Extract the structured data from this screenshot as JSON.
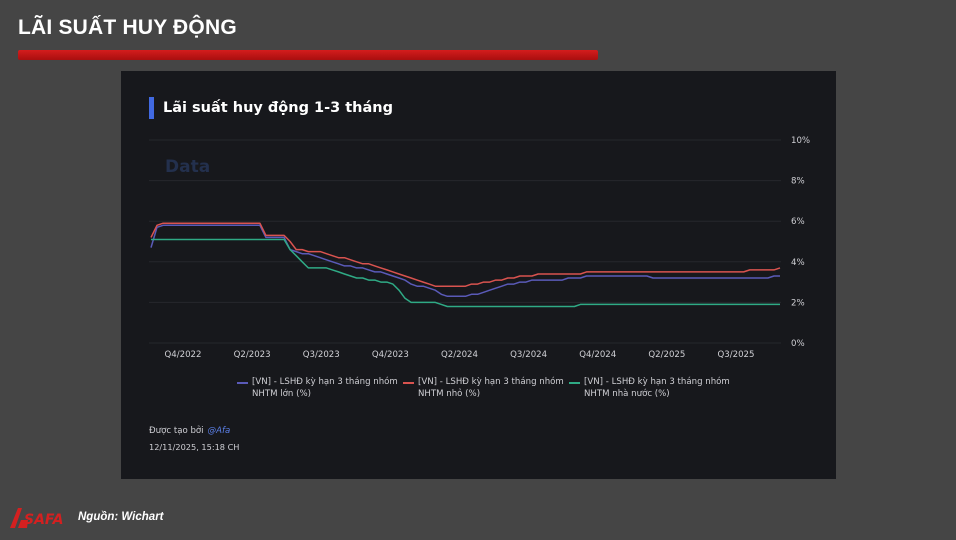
{
  "slide": {
    "title": "LÃI SUẤT HUY ĐỘNG",
    "source": "Nguồn: Wichart",
    "logo_text": "SAFA",
    "accent_color": "#c41212"
  },
  "card": {
    "heading": "Lãi suất huy động 1-3 tháng",
    "watermark": "Data",
    "credit_prefix": "Được tạo bởi",
    "credit_handle": "@Afa",
    "timestamp": "12/11/2025, 15:18 CH"
  },
  "chart_data": {
    "type": "line",
    "title": "Lãi suất huy động 1-3 tháng",
    "x_tick_labels": [
      "Q4/2022",
      "Q2/2023",
      "Q3/2023",
      "Q4/2023",
      "Q2/2024",
      "Q3/2024",
      "Q4/2024",
      "Q2/2025",
      "Q3/2025"
    ],
    "y_tick_labels": [
      "0%",
      "2%",
      "4%",
      "6%",
      "8%",
      "10%"
    ],
    "ylim": [
      0,
      10
    ],
    "y_axis_side": "right",
    "grid": true,
    "legend_position": "bottom",
    "series": [
      {
        "name": "[VN] - LSHĐ kỳ hạn 3 tháng nhóm NHTM lớn (%)",
        "color": "#5a5ab8",
        "values": [
          4.7,
          5.7,
          5.8,
          5.8,
          5.8,
          5.8,
          5.8,
          5.8,
          5.8,
          5.8,
          5.8,
          5.8,
          5.8,
          5.8,
          5.8,
          5.8,
          5.8,
          5.8,
          5.8,
          5.2,
          5.2,
          5.2,
          5.2,
          4.6,
          4.5,
          4.4,
          4.4,
          4.3,
          4.2,
          4.1,
          4.0,
          3.9,
          3.8,
          3.8,
          3.7,
          3.7,
          3.6,
          3.5,
          3.5,
          3.4,
          3.3,
          3.2,
          3.1,
          2.9,
          2.8,
          2.8,
          2.7,
          2.6,
          2.4,
          2.3,
          2.3,
          2.3,
          2.3,
          2.4,
          2.4,
          2.5,
          2.6,
          2.7,
          2.8,
          2.9,
          2.9,
          3.0,
          3.0,
          3.1,
          3.1,
          3.1,
          3.1,
          3.1,
          3.1,
          3.2,
          3.2,
          3.2,
          3.3,
          3.3,
          3.3,
          3.3,
          3.3,
          3.3,
          3.3,
          3.3,
          3.3,
          3.3,
          3.3,
          3.2,
          3.2,
          3.2,
          3.2,
          3.2,
          3.2,
          3.2,
          3.2,
          3.2,
          3.2,
          3.2,
          3.2,
          3.2,
          3.2,
          3.2,
          3.2,
          3.2,
          3.2,
          3.2,
          3.2,
          3.3,
          3.3
        ]
      },
      {
        "name": "[VN] - LSHĐ kỳ hạn 3 tháng nhóm NHTM nhỏ (%)",
        "color": "#d9534f",
        "values": [
          5.2,
          5.8,
          5.9,
          5.9,
          5.9,
          5.9,
          5.9,
          5.9,
          5.9,
          5.9,
          5.9,
          5.9,
          5.9,
          5.9,
          5.9,
          5.9,
          5.9,
          5.9,
          5.9,
          5.3,
          5.3,
          5.3,
          5.3,
          5.0,
          4.6,
          4.6,
          4.5,
          4.5,
          4.5,
          4.4,
          4.3,
          4.2,
          4.2,
          4.1,
          4.0,
          3.9,
          3.9,
          3.8,
          3.7,
          3.6,
          3.5,
          3.4,
          3.3,
          3.2,
          3.1,
          3.0,
          2.9,
          2.8,
          2.8,
          2.8,
          2.8,
          2.8,
          2.8,
          2.9,
          2.9,
          3.0,
          3.0,
          3.1,
          3.1,
          3.2,
          3.2,
          3.3,
          3.3,
          3.3,
          3.4,
          3.4,
          3.4,
          3.4,
          3.4,
          3.4,
          3.4,
          3.4,
          3.5,
          3.5,
          3.5,
          3.5,
          3.5,
          3.5,
          3.5,
          3.5,
          3.5,
          3.5,
          3.5,
          3.5,
          3.5,
          3.5,
          3.5,
          3.5,
          3.5,
          3.5,
          3.5,
          3.5,
          3.5,
          3.5,
          3.5,
          3.5,
          3.5,
          3.5,
          3.5,
          3.6,
          3.6,
          3.6,
          3.6,
          3.6,
          3.7
        ]
      },
      {
        "name": "[VN] - LSHĐ kỳ hạn 3 tháng nhóm NHTM nhà nước (%)",
        "color": "#2faa85",
        "values": [
          5.1,
          5.1,
          5.1,
          5.1,
          5.1,
          5.1,
          5.1,
          5.1,
          5.1,
          5.1,
          5.1,
          5.1,
          5.1,
          5.1,
          5.1,
          5.1,
          5.1,
          5.1,
          5.1,
          5.1,
          5.1,
          5.1,
          5.1,
          4.6,
          4.3,
          4.0,
          3.7,
          3.7,
          3.7,
          3.7,
          3.6,
          3.5,
          3.4,
          3.3,
          3.2,
          3.2,
          3.1,
          3.1,
          3.0,
          3.0,
          2.9,
          2.6,
          2.2,
          2.0,
          2.0,
          2.0,
          2.0,
          2.0,
          1.9,
          1.8,
          1.8,
          1.8,
          1.8,
          1.8,
          1.8,
          1.8,
          1.8,
          1.8,
          1.8,
          1.8,
          1.8,
          1.8,
          1.8,
          1.8,
          1.8,
          1.8,
          1.8,
          1.8,
          1.8,
          1.8,
          1.8,
          1.9,
          1.9,
          1.9,
          1.9,
          1.9,
          1.9,
          1.9,
          1.9,
          1.9,
          1.9,
          1.9,
          1.9,
          1.9,
          1.9,
          1.9,
          1.9,
          1.9,
          1.9,
          1.9,
          1.9,
          1.9,
          1.9,
          1.9,
          1.9,
          1.9,
          1.9,
          1.9,
          1.9,
          1.9,
          1.9,
          1.9,
          1.9,
          1.9,
          1.9
        ]
      }
    ]
  }
}
